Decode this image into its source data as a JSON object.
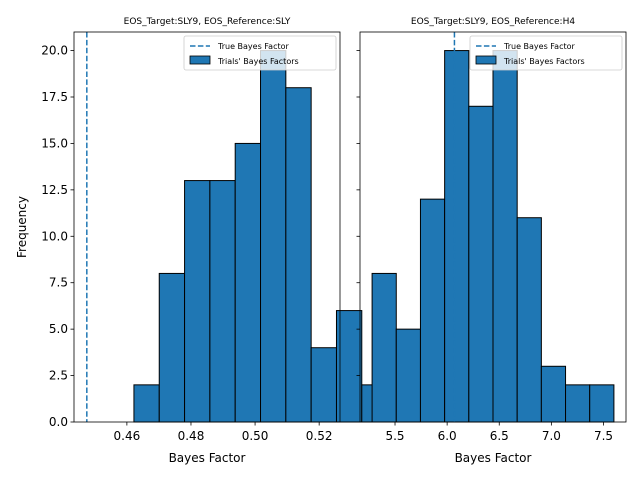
{
  "figure": {
    "ylabel": "Frequency",
    "bar_color": "#1f77b4",
    "edge_color": "#000000",
    "line_color": "#1f77b4"
  },
  "chart_data": [
    {
      "type": "bar",
      "title": "EOS_Target:SLY9, EOS_Reference:SLY",
      "xlabel": "Bayes Factor",
      "ylabel": "Frequency",
      "bin_edges": [
        0.4622,
        0.4701,
        0.478,
        0.4859,
        0.4938,
        0.5017,
        0.5096,
        0.5175,
        0.5254,
        0.5333,
        0.5412
      ],
      "bin_edges_note_unused": null,
      "counts": [
        2,
        8,
        13,
        13,
        15,
        20,
        18,
        4,
        6,
        2
      ],
      "xlim": [
        0.4435,
        0.5265
      ],
      "ylim": [
        0,
        21
      ],
      "xticks": [
        0.46,
        0.48,
        0.5,
        0.52
      ],
      "xtick_labels": [
        "0.46",
        "0.48",
        "0.50",
        "0.52"
      ],
      "yticks": [
        0,
        2.5,
        5,
        7.5,
        10,
        12.5,
        15,
        17.5,
        20
      ],
      "ytick_labels": [
        "0.0",
        "2.5",
        "5.0",
        "7.5",
        "10.0",
        "12.5",
        "15.0",
        "17.5",
        "20.0"
      ],
      "true_bayes_factor": 0.4475,
      "legend": {
        "position": "top-right",
        "line_label": "True Bayes Factor",
        "bar_label": "Trials' Bayes Factors"
      }
    },
    {
      "type": "bar",
      "title": "EOS_Target:SLY9, EOS_Reference:H4",
      "xlabel": "Bayes Factor",
      "ylabel": "",
      "bin_edges": [
        5.28,
        5.512,
        5.744,
        5.976,
        6.208,
        6.44,
        6.672,
        6.904,
        7.136,
        7.368,
        7.6
      ],
      "counts": [
        8,
        5,
        12,
        20,
        17,
        20,
        11,
        3,
        2,
        2
      ],
      "xlim": [
        5.164,
        7.716
      ],
      "ylim": [
        0,
        21
      ],
      "xticks": [
        5.5,
        6.0,
        6.5,
        7.0,
        7.5
      ],
      "xtick_labels": [
        "5.5",
        "6.0",
        "6.5",
        "7.0",
        "7.5"
      ],
      "yticks": [
        0,
        2.5,
        5,
        7.5,
        10,
        12.5,
        15,
        17.5,
        20
      ],
      "ytick_labels": [
        "",
        "",
        "",
        "",
        "",
        "",
        "",
        "",
        ""
      ],
      "true_bayes_factor": 6.07,
      "legend": {
        "position": "top-right",
        "line_label": "True Bayes Factor",
        "bar_label": "Trials' Bayes Factors"
      }
    }
  ]
}
